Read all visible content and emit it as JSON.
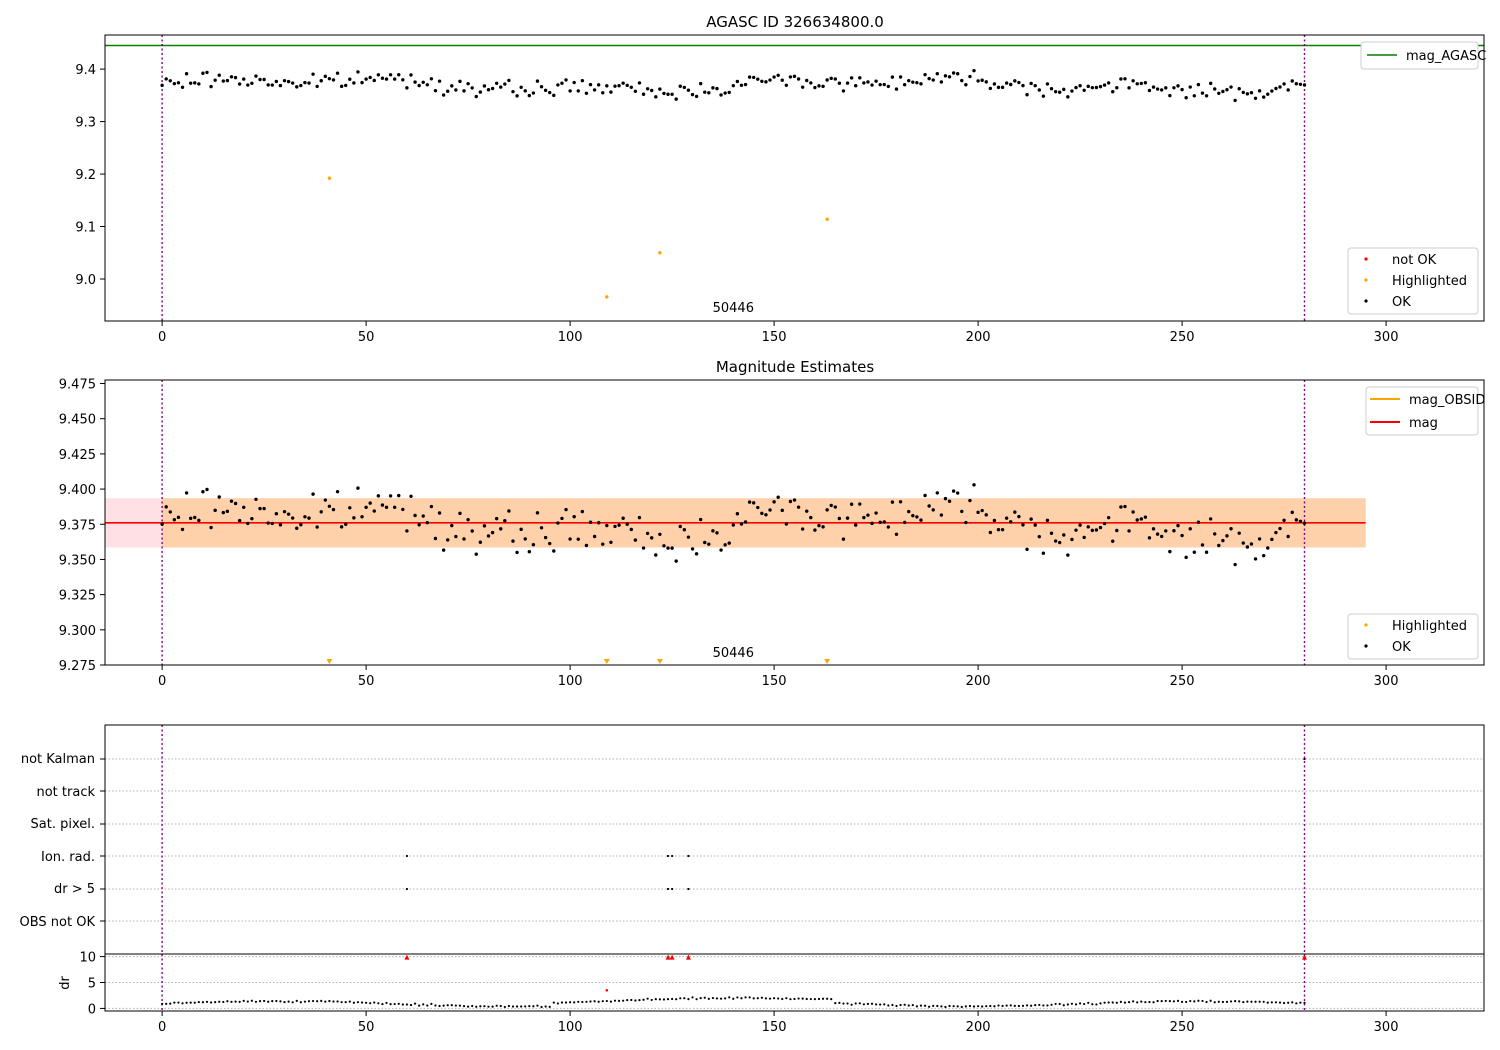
{
  "chart_data": [
    {
      "type": "scatter",
      "title": "AGASC ID 326634800.0",
      "xlim": [
        -14,
        324
      ],
      "ylim": [
        8.92,
        9.465
      ],
      "xticks": [
        "0",
        "50",
        "100",
        "150",
        "200",
        "250",
        "300"
      ],
      "yticks": [
        "9.0",
        "9.1",
        "9.2",
        "9.3",
        "9.4"
      ],
      "mag_agasc": 9.445,
      "obs_bounds": [
        0,
        280
      ],
      "obsid_label": "50446",
      "obsid_label_x": 140,
      "legend_top": [
        "mag_AGASC"
      ],
      "legend_bottom": [
        "not OK",
        "Highlighted",
        "OK"
      ],
      "legend_position": [
        "upper right",
        "lower right"
      ],
      "highlighted_points": [
        [
          41,
          9.192
        ],
        [
          109,
          8.966
        ],
        [
          122,
          9.05
        ],
        [
          163,
          9.114
        ]
      ],
      "ok_base": 9.37,
      "ok_amplitude": 0.022,
      "ok_range": [
        0,
        280
      ]
    },
    {
      "type": "scatter",
      "title": "Magnitude Estimates",
      "xlim": [
        -14,
        324
      ],
      "ylim": [
        9.275,
        9.4775
      ],
      "xticks": [
        "0",
        "50",
        "100",
        "150",
        "200",
        "250",
        "300"
      ],
      "yticks": [
        "9.275",
        "9.300",
        "9.325",
        "9.350",
        "9.375",
        "9.400",
        "9.425",
        "9.450",
        "9.475"
      ],
      "mag": 9.376,
      "mag_std": 0.0175,
      "mag_obsid": 9.376,
      "mag_obsid_std": 0.0175,
      "band_range": [
        -14,
        295
      ],
      "obs_bounds": [
        0,
        280
      ],
      "obsid_label": "50446",
      "obsid_label_x": 140,
      "legend_top": [
        "mag_OBSID",
        "mag"
      ],
      "legend_bottom": [
        "Highlighted",
        "OK"
      ],
      "legend_position": [
        "upper right",
        "lower right"
      ],
      "highlighted_x": [
        41,
        109,
        122,
        163
      ]
    },
    {
      "type": "scatter",
      "title": "",
      "xlim": [
        -14,
        324
      ],
      "flag_labels": [
        "not Kalman",
        "not track",
        "Sat. pixel.",
        "Ion. rad.",
        "dr > 5",
        "OBS not OK"
      ],
      "flag_points": {
        "Ion. rad.": [
          60,
          124,
          125,
          129
        ],
        "dr > 5": [
          60,
          124,
          125,
          129
        ],
        "not Kalman": [
          280
        ]
      },
      "obs_bounds": [
        0,
        280
      ]
    },
    {
      "type": "scatter",
      "title": "",
      "ylabel": "dr",
      "xlim": [
        -14,
        324
      ],
      "ylim": [
        -0.5,
        10.5
      ],
      "xticks": [
        "0",
        "50",
        "100",
        "150",
        "200",
        "250",
        "300"
      ],
      "yticks": [
        "0",
        "5",
        "10"
      ],
      "clipped_x": [
        60,
        124,
        125,
        129,
        280
      ],
      "red_points": [
        [
          109,
          3.5
        ]
      ],
      "obs_bounds": [
        0,
        280
      ]
    }
  ]
}
